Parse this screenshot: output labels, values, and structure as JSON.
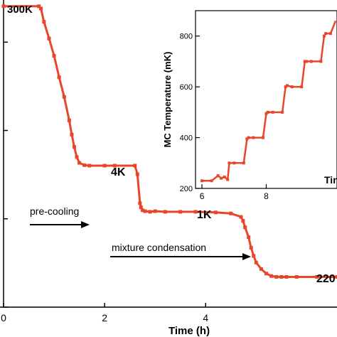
{
  "chart_data": [
    {
      "type": "line",
      "xlabel": "Time (h)",
      "ylabel": "",
      "xlim": [
        0,
        6.6
      ],
      "ylim": [
        0.1,
        300
      ],
      "y_scale": "log",
      "x_ticks": [
        "0",
        "2",
        "4"
      ],
      "color": "#e8452a",
      "annotations": {
        "start": "300K",
        "stage_4k": "4K",
        "stage_1k": "1K",
        "base": "220",
        "precool": "pre-cooling",
        "condense": "mixture condensation"
      },
      "series": [
        {
          "x": [
            0,
            0.7,
            0.74,
            0.8,
            0.9,
            1.0,
            1.1,
            1.2,
            1.3,
            1.35,
            1.4,
            1.45,
            1.5,
            1.6,
            1.7,
            2.0,
            2.2,
            2.6,
            2.65,
            2.7,
            2.72,
            2.75,
            2.8,
            2.9,
            3.0,
            3.2,
            3.5,
            3.8,
            4.2,
            4.5,
            4.7,
            4.74,
            4.78,
            4.85,
            4.9,
            4.95,
            5.0,
            5.1,
            5.2,
            5.3,
            5.4,
            5.5,
            5.6,
            5.8,
            6.2,
            6.6
          ],
          "y": [
            255,
            255,
            240,
            170,
            110,
            70,
            40,
            24,
            13,
            9,
            6.5,
            5,
            4.3,
            4.05,
            4.0,
            4.0,
            4.0,
            4.0,
            3.2,
            1.5,
            1.35,
            1.25,
            1.22,
            1.2,
            1.22,
            1.2,
            1.2,
            1.2,
            1.18,
            1.15,
            1.05,
            0.95,
            0.8,
            0.62,
            0.47,
            0.38,
            0.32,
            0.27,
            0.24,
            0.225,
            0.22,
            0.22,
            0.22,
            0.22,
            0.22,
            0.22
          ]
        }
      ]
    },
    {
      "type": "line",
      "xlabel": "Tim",
      "ylabel": "MC Temperature (mK)",
      "xlim": [
        5.8,
        10.2
      ],
      "ylim": [
        200,
        900
      ],
      "x_ticks": [
        "6",
        "8"
      ],
      "y_ticks": [
        "200",
        "400",
        "600",
        "800"
      ],
      "color": "#e8452a",
      "series": [
        {
          "x": [
            6.0,
            6.3,
            6.5,
            6.6,
            6.7,
            6.8,
            6.85,
            7.0,
            7.3,
            7.4,
            7.45,
            7.6,
            7.9,
            8.0,
            8.05,
            8.2,
            8.5,
            8.6,
            8.65,
            8.8,
            9.1,
            9.2,
            9.25,
            9.4,
            9.7,
            9.8,
            9.85,
            10.0,
            10.2
          ],
          "y": [
            230,
            230,
            250,
            240,
            245,
            235,
            300,
            300,
            300,
            395,
            400,
            400,
            400,
            495,
            500,
            500,
            500,
            600,
            605,
            600,
            600,
            700,
            700,
            700,
            700,
            800,
            810,
            810,
            860
          ]
        }
      ]
    }
  ]
}
